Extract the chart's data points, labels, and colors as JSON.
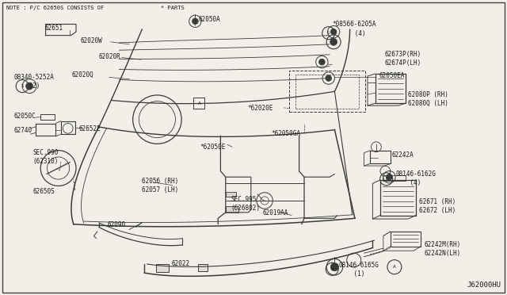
{
  "bg_color": "#f2efe9",
  "line_color": "#3a3a3a",
  "text_color": "#1a1a1a",
  "border_color": "#444444",
  "diagram_id": "J62000HU",
  "note_text": "NOTE : P/C 62650S CONSISTS OF ",
  "note_star": "* PARTS",
  "font_size": 5.5,
  "small_font": 5.0
}
